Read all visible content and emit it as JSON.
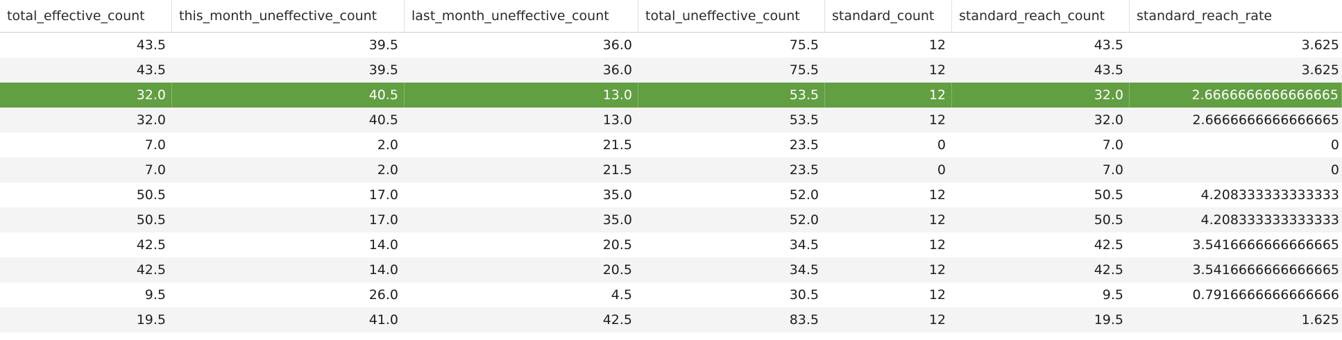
{
  "table": {
    "columns": [
      "total_effective_count",
      "this_month_uneffective_count",
      "last_month_uneffective_count",
      "total_uneffective_count",
      "standard_count",
      "standard_reach_count",
      "standard_reach_rate"
    ],
    "selected_row_index": 2,
    "rows": [
      [
        "43.5",
        "39.5",
        "36.0",
        "75.5",
        "12",
        "43.5",
        "3.625"
      ],
      [
        "43.5",
        "39.5",
        "36.0",
        "75.5",
        "12",
        "43.5",
        "3.625"
      ],
      [
        "32.0",
        "40.5",
        "13.0",
        "53.5",
        "12",
        "32.0",
        "2.6666666666666665"
      ],
      [
        "32.0",
        "40.5",
        "13.0",
        "53.5",
        "12",
        "32.0",
        "2.6666666666666665"
      ],
      [
        "7.0",
        "2.0",
        "21.5",
        "23.5",
        "0",
        "7.0",
        "0"
      ],
      [
        "7.0",
        "2.0",
        "21.5",
        "23.5",
        "0",
        "7.0",
        "0"
      ],
      [
        "50.5",
        "17.0",
        "35.0",
        "52.0",
        "12",
        "50.5",
        "4.208333333333333"
      ],
      [
        "50.5",
        "17.0",
        "35.0",
        "52.0",
        "12",
        "50.5",
        "4.208333333333333"
      ],
      [
        "42.5",
        "14.0",
        "20.5",
        "34.5",
        "12",
        "42.5",
        "3.5416666666666665"
      ],
      [
        "42.5",
        "14.0",
        "20.5",
        "34.5",
        "12",
        "42.5",
        "3.5416666666666665"
      ],
      [
        "9.5",
        "26.0",
        "4.5",
        "30.5",
        "12",
        "9.5",
        "0.7916666666666666"
      ],
      [
        "19.5",
        "41.0",
        "42.5",
        "83.5",
        "12",
        "19.5",
        "1.625"
      ]
    ]
  },
  "colors": {
    "selected_row_bg": "#629e42",
    "stripe_bg": "#f4f4f4",
    "header_border": "#cfcfcf"
  }
}
